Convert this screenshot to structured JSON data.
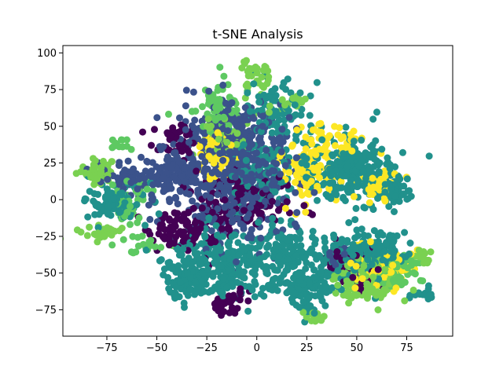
{
  "chart_data": {
    "type": "scatter",
    "title": "t-SNE Analysis",
    "xlabel": "",
    "ylabel": "",
    "xlim": [
      -97,
      98
    ],
    "ylim": [
      -93,
      105
    ],
    "x_ticks": [
      -75,
      -50,
      -25,
      0,
      25,
      50,
      75
    ],
    "x_tick_labels": [
      "−75",
      "−50",
      "−25",
      "0",
      "25",
      "50",
      "75"
    ],
    "y_ticks": [
      -75,
      -50,
      -25,
      0,
      25,
      50,
      75,
      100
    ],
    "y_tick_labels": [
      "−75",
      "−50",
      "−25",
      "0",
      "25",
      "50",
      "75",
      "100"
    ],
    "grid": false,
    "legend": "none",
    "colormap": [
      "#440154",
      "#3b528b",
      "#21918c",
      "#5ec962",
      "#7ad151",
      "#fde725"
    ],
    "marker_radius": 4.5,
    "clusters": [
      {
        "cx": -80,
        "cy": 20,
        "sx": 5,
        "sy": 4,
        "n": 45,
        "c": 4
      },
      {
        "cx": -72,
        "cy": -2,
        "sx": 8,
        "sy": 7,
        "n": 90,
        "c": 2
      },
      {
        "cx": -64,
        "cy": 15,
        "sx": 6,
        "sy": 5,
        "n": 50,
        "c": 1
      },
      {
        "cx": -68,
        "cy": 38,
        "sx": 3,
        "sy": 3,
        "n": 12,
        "c": 3
      },
      {
        "cx": -78,
        "cy": -22,
        "sx": 6,
        "sy": 3,
        "n": 25,
        "c": 4
      },
      {
        "cx": -45,
        "cy": 15,
        "sx": 8,
        "sy": 10,
        "n": 120,
        "c": 1
      },
      {
        "cx": -40,
        "cy": 40,
        "sx": 6,
        "sy": 6,
        "n": 40,
        "c": 0
      },
      {
        "cx": -20,
        "cy": 65,
        "sx": 6,
        "sy": 8,
        "n": 70,
        "c": 3
      },
      {
        "cx": -22,
        "cy": 30,
        "sx": 6,
        "sy": 8,
        "n": 50,
        "c": 5
      },
      {
        "cx": -10,
        "cy": 10,
        "sx": 14,
        "sy": 18,
        "n": 340,
        "c": 1
      },
      {
        "cx": -10,
        "cy": 45,
        "sx": 12,
        "sy": 12,
        "n": 220,
        "c": 1
      },
      {
        "cx": -15,
        "cy": 42,
        "sx": 7,
        "sy": 8,
        "n": 50,
        "c": 4
      },
      {
        "cx": 0,
        "cy": 85,
        "sx": 4,
        "sy": 5,
        "n": 30,
        "c": 4
      },
      {
        "cx": 10,
        "cy": 60,
        "sx": 8,
        "sy": 10,
        "n": 80,
        "c": 2
      },
      {
        "cx": 15,
        "cy": 65,
        "sx": 4,
        "sy": 4,
        "n": 20,
        "c": 4
      },
      {
        "cx": 5,
        "cy": 20,
        "sx": 10,
        "sy": 15,
        "n": 130,
        "c": 2
      },
      {
        "cx": -5,
        "cy": -2,
        "sx": 12,
        "sy": 10,
        "n": 120,
        "c": 0
      },
      {
        "cx": 25,
        "cy": 18,
        "sx": 7,
        "sy": 10,
        "n": 90,
        "c": 5
      },
      {
        "cx": 48,
        "cy": 20,
        "sx": 10,
        "sy": 12,
        "n": 220,
        "c": 2
      },
      {
        "cx": 60,
        "cy": 10,
        "sx": 6,
        "sy": 6,
        "n": 45,
        "c": 5
      },
      {
        "cx": 38,
        "cy": 40,
        "sx": 8,
        "sy": 5,
        "n": 45,
        "c": 5
      },
      {
        "cx": 68,
        "cy": 5,
        "sx": 5,
        "sy": 6,
        "n": 45,
        "c": 2
      },
      {
        "cx": -35,
        "cy": -20,
        "sx": 10,
        "sy": 8,
        "n": 100,
        "c": 0
      },
      {
        "cx": -20,
        "cy": -45,
        "sx": 12,
        "sy": 12,
        "n": 250,
        "c": 2
      },
      {
        "cx": -35,
        "cy": -55,
        "sx": 6,
        "sy": 6,
        "n": 60,
        "c": 2
      },
      {
        "cx": -15,
        "cy": -70,
        "sx": 5,
        "sy": 4,
        "n": 35,
        "c": 0
      },
      {
        "cx": 15,
        "cy": -35,
        "sx": 10,
        "sy": 8,
        "n": 150,
        "c": 2
      },
      {
        "cx": 25,
        "cy": -60,
        "sx": 8,
        "sy": 8,
        "n": 120,
        "c": 2
      },
      {
        "cx": 30,
        "cy": -80,
        "sx": 3,
        "sy": 2,
        "n": 15,
        "c": 4
      },
      {
        "cx": 55,
        "cy": -38,
        "sx": 10,
        "sy": 7,
        "n": 220,
        "c": 2
      },
      {
        "cx": 45,
        "cy": -40,
        "sx": 6,
        "sy": 5,
        "n": 45,
        "c": 1
      },
      {
        "cx": 55,
        "cy": -55,
        "sx": 8,
        "sy": 8,
        "n": 150,
        "c": 4
      },
      {
        "cx": 60,
        "cy": -45,
        "sx": 8,
        "sy": 8,
        "n": 100,
        "c": 5
      },
      {
        "cx": 48,
        "cy": -48,
        "sx": 7,
        "sy": 7,
        "n": 60,
        "c": 0
      },
      {
        "cx": 70,
        "cy": -50,
        "sx": 6,
        "sy": 5,
        "n": 50,
        "c": 3
      },
      {
        "cx": 82,
        "cy": -40,
        "sx": 3,
        "sy": 3,
        "n": 15,
        "c": 4
      },
      {
        "cx": 82,
        "cy": -65,
        "sx": 3,
        "sy": 3,
        "n": 15,
        "c": 2
      },
      {
        "cx": -58,
        "cy": -30,
        "sx": 6,
        "sy": 3,
        "n": 20,
        "c": 3
      },
      {
        "cx": -62,
        "cy": 0,
        "sx": 6,
        "sy": 8,
        "n": 40,
        "c": 3
      }
    ]
  }
}
